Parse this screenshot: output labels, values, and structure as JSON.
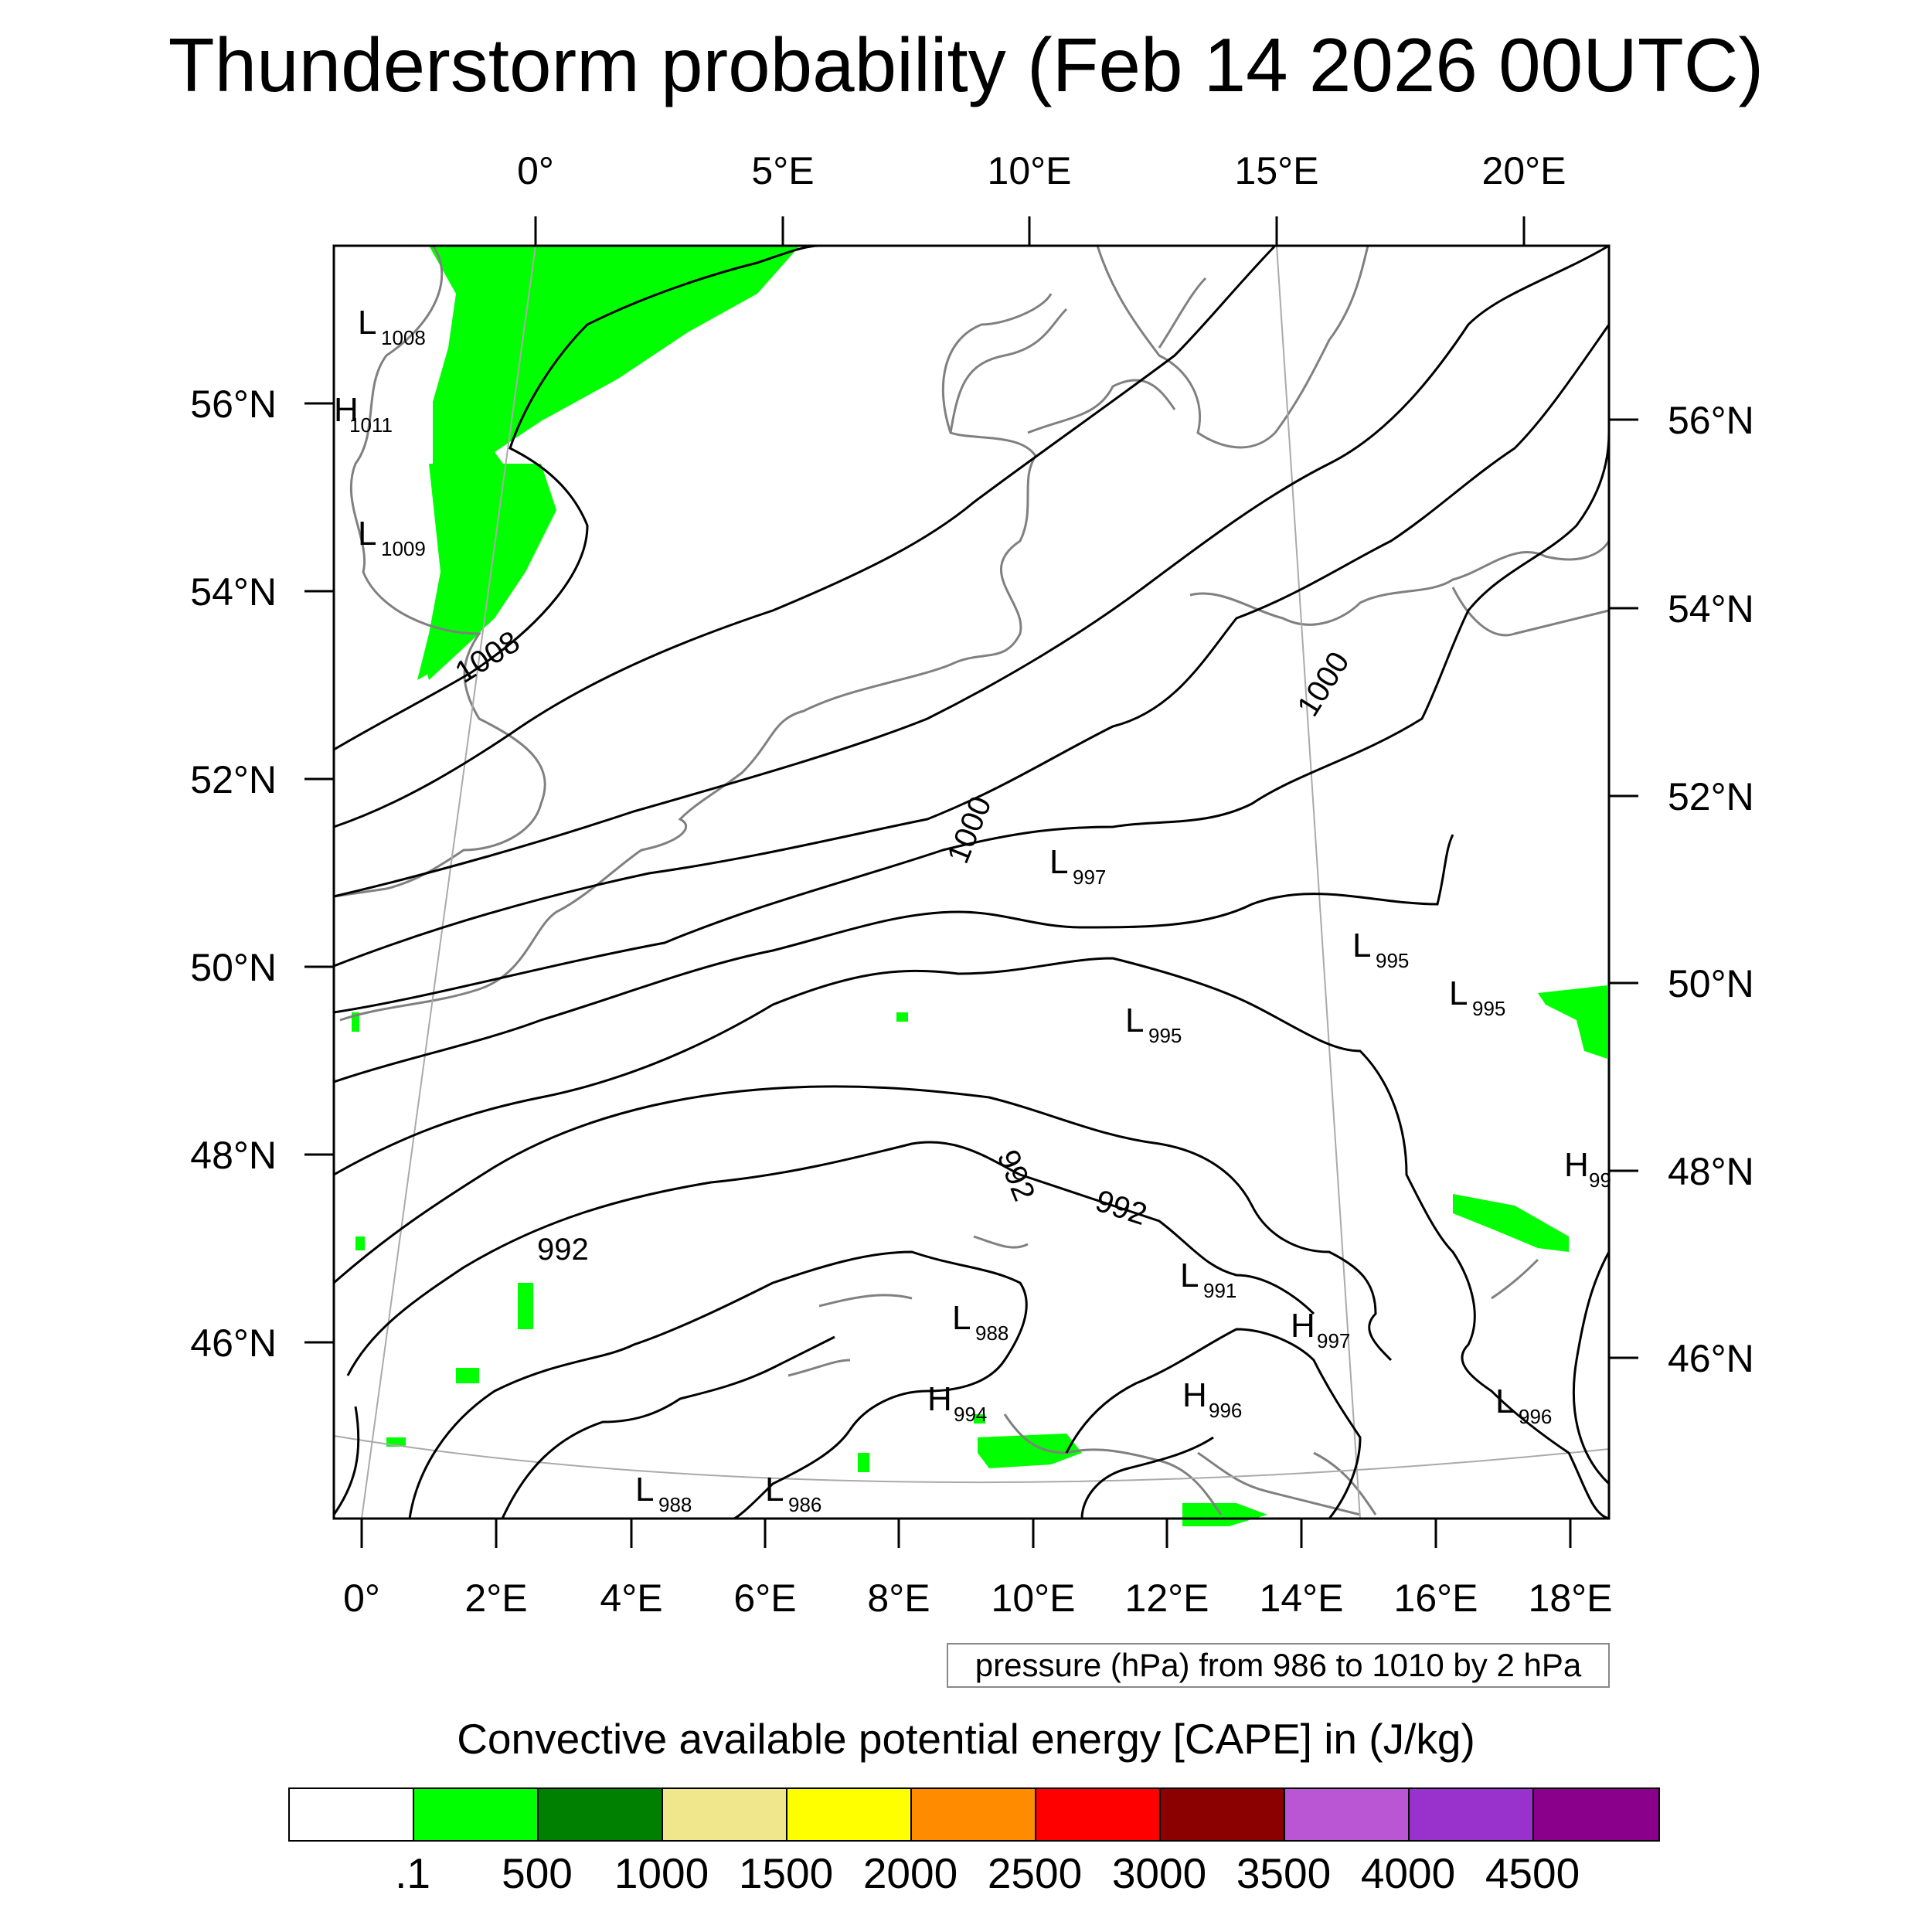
{
  "title": "Thunderstorm probability (Feb 14 2026 00UTC)",
  "top_lon_labels": [
    "0°",
    "5°E",
    "10°E",
    "15°E",
    "20°E"
  ],
  "bottom_lon_labels": [
    "0°",
    "2°E",
    "4°E",
    "6°E",
    "8°E",
    "10°E",
    "12°E",
    "14°E",
    "16°E",
    "18°E"
  ],
  "left_lat_labels": [
    "56°N",
    "54°N",
    "52°N",
    "50°N",
    "48°N",
    "46°N"
  ],
  "right_lat_labels": [
    "56°N",
    "54°N",
    "52°N",
    "50°N",
    "48°N",
    "46°N"
  ],
  "contour_labels": [
    "1008",
    "1000",
    "1000",
    "992",
    "992",
    "992"
  ],
  "pressure_centers": [
    {
      "type": "L",
      "value": "1008"
    },
    {
      "type": "H",
      "value": "1011"
    },
    {
      "type": "L",
      "value": "1009"
    },
    {
      "type": "L",
      "value": "997"
    },
    {
      "type": "L",
      "value": "995"
    },
    {
      "type": "L",
      "value": "995"
    },
    {
      "type": "L",
      "value": "995"
    },
    {
      "type": "H",
      "value": "99"
    },
    {
      "type": "L",
      "value": "991"
    },
    {
      "type": "L",
      "value": "988"
    },
    {
      "type": "H",
      "value": "997"
    },
    {
      "type": "H",
      "value": "994"
    },
    {
      "type": "H",
      "value": "996"
    },
    {
      "type": "L",
      "value": "996"
    },
    {
      "type": "L",
      "value": "988"
    },
    {
      "type": "L",
      "value": "986"
    }
  ],
  "pressure_legend": "pressure (hPa) from 986 to 1010 by 2 hPa",
  "cape_title": "Convective available potential energy [CAPE] in (J/kg)",
  "colorbar": {
    "colors": [
      "#ffffff",
      "#00ff00",
      "#008000",
      "#f0e68c",
      "#ffff00",
      "#ff8c00",
      "#ff0000",
      "#8b0000",
      "#ba55d3",
      "#9932cc",
      "#8b008b"
    ],
    "labels": [
      ".1",
      "500",
      "1000",
      "1500",
      "2000",
      "2500",
      "3000",
      "3500",
      "4000",
      "4500"
    ]
  },
  "colors": {
    "cape_fill": "#00ff00",
    "isobar": "#000000",
    "coast": "#808080"
  }
}
